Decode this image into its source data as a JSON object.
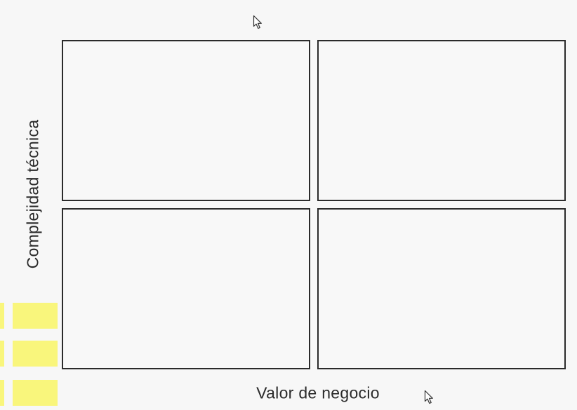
{
  "diagram": {
    "y_axis_label": "Complejidad técnica",
    "x_axis_label": "Valor de negocio",
    "quadrants": [
      "",
      "",
      "",
      ""
    ]
  },
  "colors": {
    "background": "#f7f7f7",
    "quadrant_border": "#2b2b2b",
    "sticky_note": "#f9f67c"
  },
  "icons": [
    "pointer-cursor-icon",
    "pointer-cursor-icon"
  ]
}
